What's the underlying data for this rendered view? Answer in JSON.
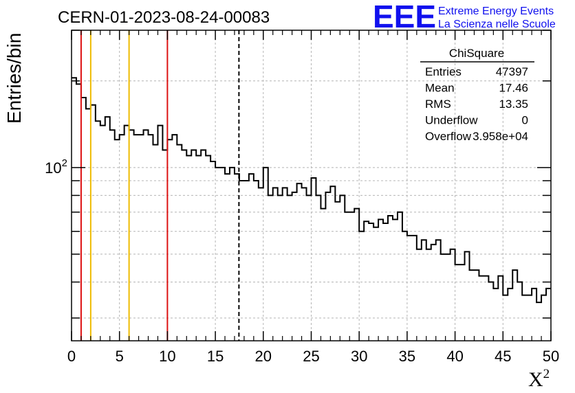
{
  "header": {
    "run_title": "CERN-01-2023-08-24-00083",
    "logo_mark": "EEE",
    "logo_line1": "Extreme Energy Events",
    "logo_line2": "La Scienza nelle Scuole"
  },
  "stats_box": {
    "title": "ChiSquare",
    "rows": [
      {
        "label": "Entries",
        "value": "47397"
      },
      {
        "label": "Mean",
        "value": "17.46"
      },
      {
        "label": "RMS",
        "value": "13.35"
      },
      {
        "label": "Underflow",
        "value": "0"
      },
      {
        "label": "Overflow",
        "value": "3.958e+04"
      }
    ]
  },
  "colors": {
    "histogram": "#000000",
    "red_lines": "#dd1111",
    "yellow_lines": "#eebb00",
    "grid": "#b4b4b4",
    "logo": "#1010ee"
  },
  "chart_data": {
    "type": "histogram",
    "title": "CERN-01-2023-08-24-00083",
    "xlabel": "X",
    "xlabel_superscript": "2",
    "ylabel": "Entries/bin",
    "xlim": [
      0,
      50
    ],
    "ylim": [
      25,
      300
    ],
    "y_scale": "log",
    "grid": true,
    "x_ticks": [
      0,
      5,
      10,
      15,
      20,
      25,
      30,
      35,
      40,
      45,
      50
    ],
    "y_tick_labels": [
      {
        "value": 100,
        "label": "10",
        "exponent": "2"
      }
    ],
    "bin_width": 0.5,
    "bins_x_start": 0,
    "values": [
      205,
      195,
      175,
      160,
      165,
      145,
      140,
      150,
      135,
      125,
      130,
      140,
      135,
      130,
      130,
      135,
      130,
      120,
      140,
      115,
      125,
      130,
      120,
      115,
      110,
      115,
      110,
      115,
      110,
      105,
      100,
      100,
      95,
      100,
      95,
      90,
      90,
      95,
      90,
      85,
      100,
      80,
      85,
      80,
      85,
      80,
      82,
      88,
      85,
      80,
      92,
      80,
      72,
      82,
      86,
      76,
      80,
      70,
      70,
      72,
      60,
      65,
      64,
      62,
      66,
      64,
      68,
      66,
      70,
      60,
      58,
      58,
      52,
      56,
      52,
      54,
      56,
      50,
      50,
      52,
      46,
      46,
      51,
      44,
      44,
      42,
      42,
      40,
      38,
      42,
      36,
      38,
      44,
      40,
      36,
      36,
      38,
      34,
      36,
      38
    ],
    "vertical_lines": [
      {
        "x": 1,
        "style": "solid",
        "color": "red"
      },
      {
        "x": 2,
        "style": "solid",
        "color": "yellow"
      },
      {
        "x": 6,
        "style": "solid",
        "color": "yellow"
      },
      {
        "x": 10,
        "style": "solid",
        "color": "red"
      },
      {
        "x": 17.46,
        "style": "dashed",
        "color": "black"
      }
    ]
  }
}
